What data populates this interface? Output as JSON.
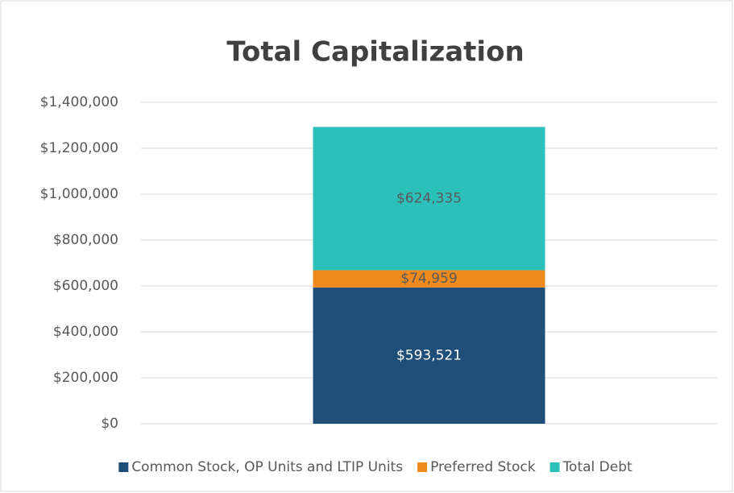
{
  "chart_data": {
    "type": "stacked_bar",
    "title": "Total Capitalization",
    "categories": [
      null
    ],
    "series": [
      {
        "name": "Common Stock, OP Units and LTIP Units",
        "color": "#1f4e79",
        "values": [
          593521
        ],
        "value_labels": [
          "$593,521"
        ]
      },
      {
        "name": "Preferred Stock",
        "color": "#ee8a1c",
        "values": [
          74959
        ],
        "value_labels": [
          "$74,959"
        ]
      },
      {
        "name": "Total Debt",
        "color": "#2cc0bb",
        "values": [
          624335
        ],
        "value_labels": [
          "$624,335"
        ]
      }
    ],
    "ylim": [
      0,
      1400000
    ],
    "yticks": [
      {
        "value": 0,
        "label": "$0"
      },
      {
        "value": 200000,
        "label": "$200,000"
      },
      {
        "value": 400000,
        "label": "$400,000"
      },
      {
        "value": 600000,
        "label": "$600,000"
      },
      {
        "value": 800000,
        "label": "$800,000"
      },
      {
        "value": 1000000,
        "label": "$1,000,000"
      },
      {
        "value": 1200000,
        "label": "$1,200,000"
      },
      {
        "value": 1400000,
        "label": "$1,400,000"
      }
    ],
    "grid": true,
    "legend": "bottom"
  }
}
